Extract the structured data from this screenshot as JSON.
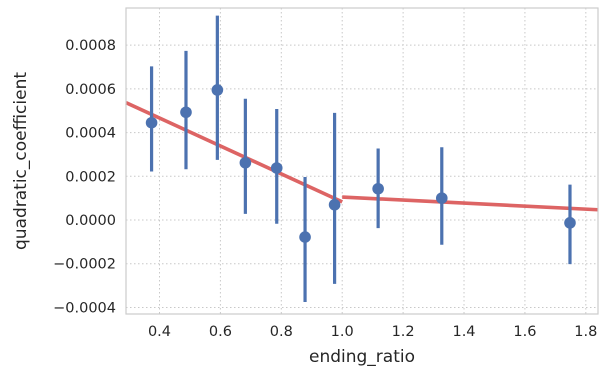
{
  "chart_data": {
    "type": "scatter",
    "xlabel": "ending_ratio",
    "ylabel": "quadratic_coefficient",
    "xlim": [
      0.29,
      1.84
    ],
    "ylim": [
      -0.00043,
      0.00097
    ],
    "x_ticks": [
      0.4,
      0.6,
      0.8,
      1.0,
      1.2,
      1.4,
      1.6,
      1.8
    ],
    "x_tick_labels": [
      "0.4",
      "0.6",
      "0.8",
      "1.0",
      "1.2",
      "1.4",
      "1.6",
      "1.8"
    ],
    "y_ticks": [
      -0.0004,
      -0.0002,
      0.0,
      0.0002,
      0.0004,
      0.0006,
      0.0008
    ],
    "y_tick_labels": [
      "−0.0004",
      "−0.0002",
      "0.0000",
      "0.0002",
      "0.0004",
      "0.0006",
      "0.0008"
    ],
    "grid": true,
    "points": [
      {
        "x": 0.374,
        "y": 0.000445,
        "lo": 0.000222,
        "hi": 0.000703
      },
      {
        "x": 0.487,
        "y": 0.000493,
        "lo": 0.000232,
        "hi": 0.000774
      },
      {
        "x": 0.59,
        "y": 0.000595,
        "lo": 0.000275,
        "hi": 0.000935
      },
      {
        "x": 0.682,
        "y": 0.000262,
        "lo": 2.8e-05,
        "hi": 0.000555
      },
      {
        "x": 0.785,
        "y": 0.000238,
        "lo": -1.7e-05,
        "hi": 0.000508
      },
      {
        "x": 0.878,
        "y": -7.8e-05,
        "lo": -0.000375,
        "hi": 0.000197
      },
      {
        "x": 0.975,
        "y": 7e-05,
        "lo": -0.000292,
        "hi": 0.00049
      },
      {
        "x": 1.118,
        "y": 0.000143,
        "lo": -3.7e-05,
        "hi": 0.000327
      },
      {
        "x": 1.327,
        "y": 0.0001,
        "lo": -0.000113,
        "hi": 0.000333
      },
      {
        "x": 1.748,
        "y": -1.3e-05,
        "lo": -0.000202,
        "hi": 0.000162
      }
    ],
    "fit_lines": [
      {
        "x": [
          0.29,
          1.0
        ],
        "y": [
          0.000537,
          8.3e-05
        ]
      },
      {
        "x": [
          1.0,
          1.84
        ],
        "y": [
          0.000105,
          4.7e-05
        ]
      }
    ],
    "colors": {
      "points": "#4c72b0",
      "fit": "#dd6464",
      "grid": "#c8c8c8",
      "frame": "#cccccc"
    }
  }
}
